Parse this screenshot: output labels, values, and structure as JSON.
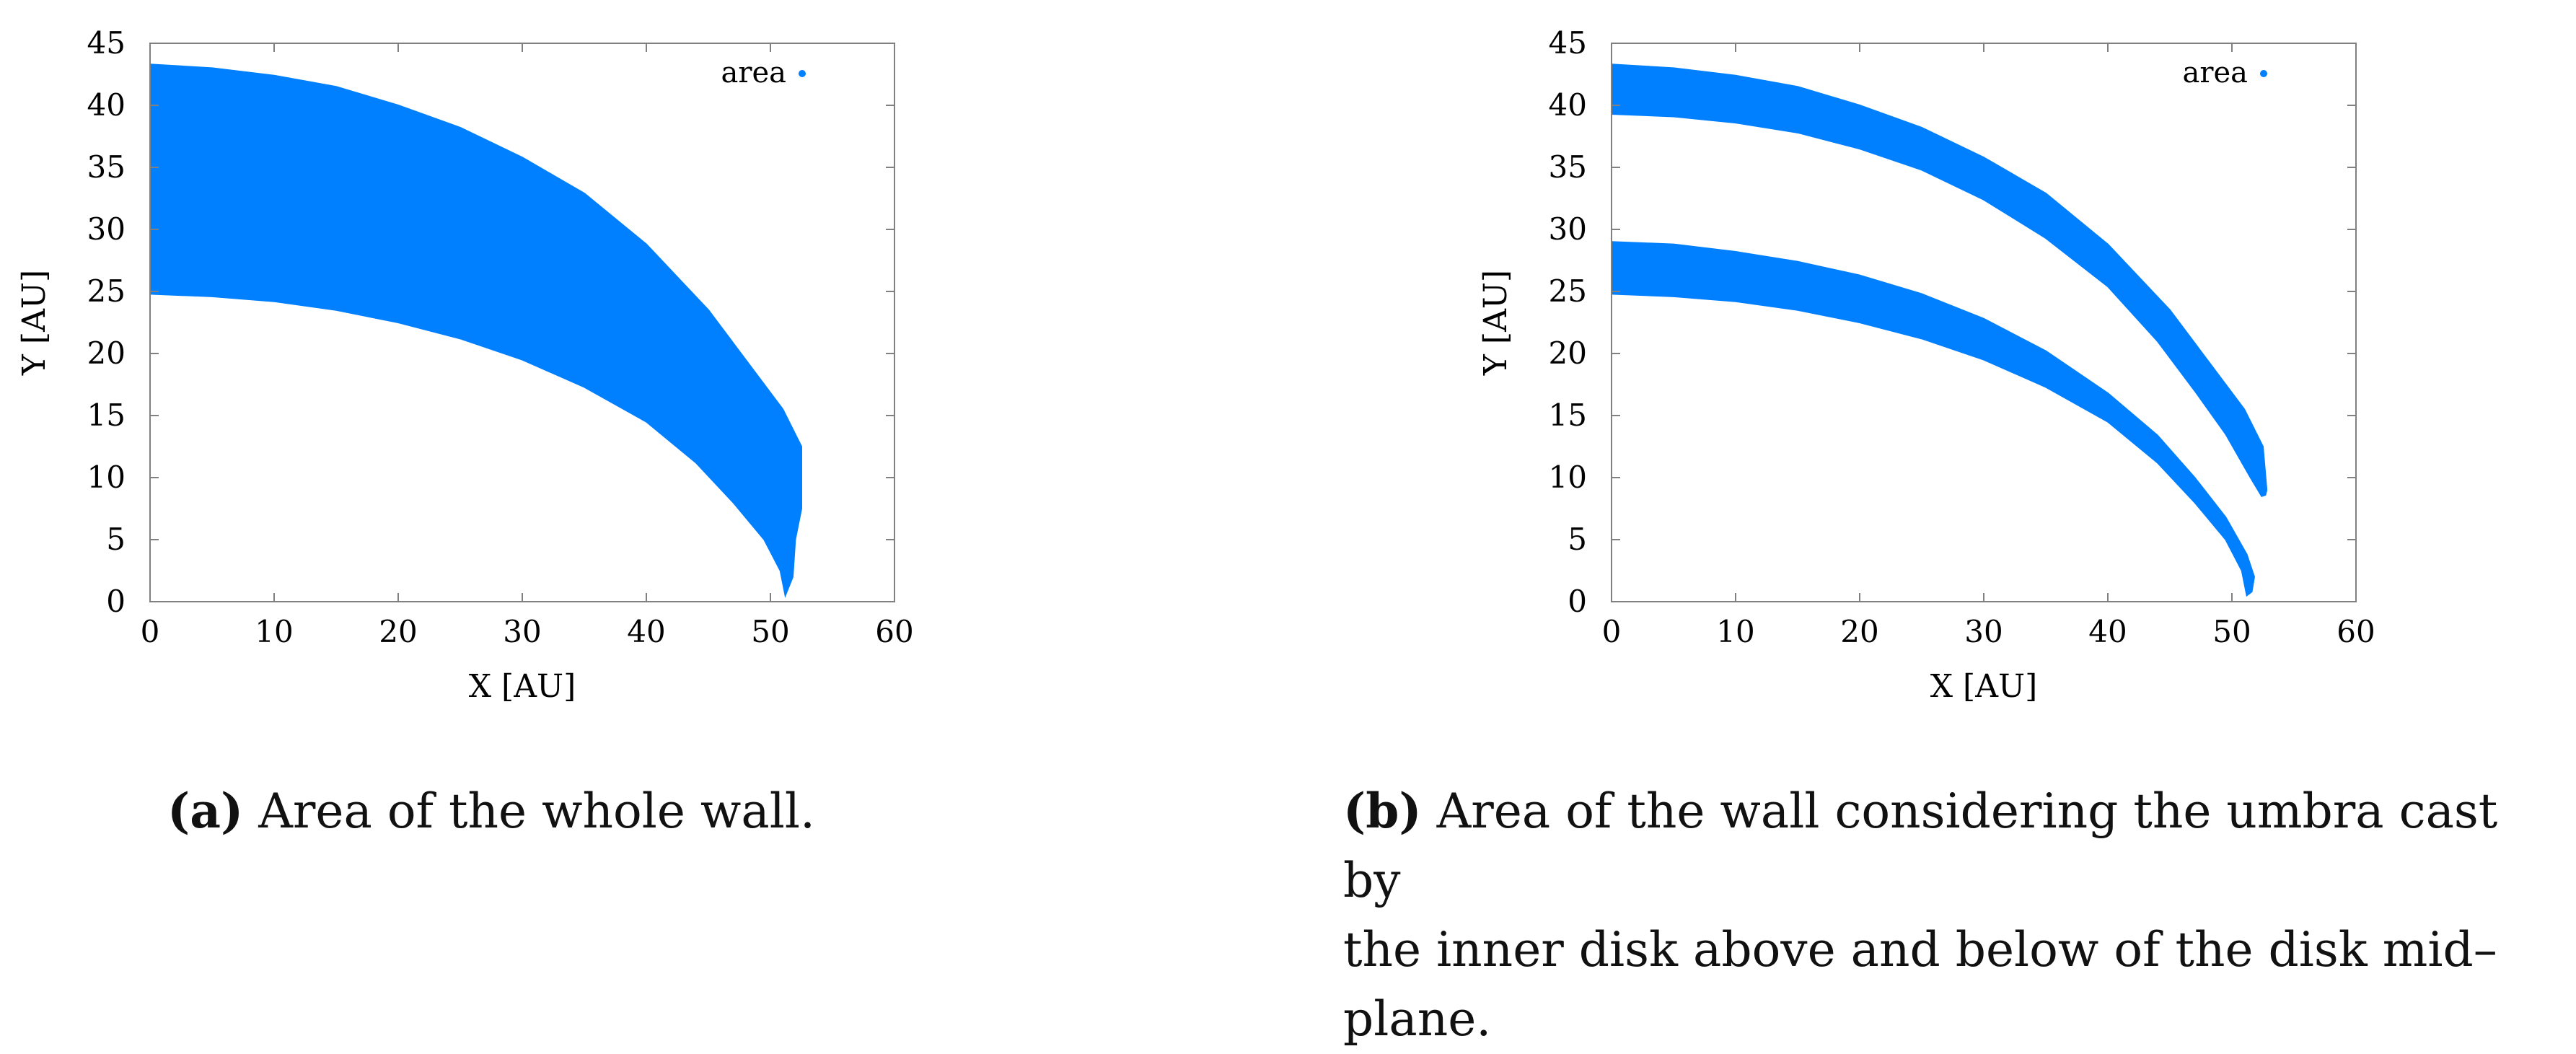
{
  "chart_data": [
    {
      "type": "scatter",
      "legend": "area",
      "legend_position": "top-right",
      "color": "#0080ff",
      "xlabel": "X [AU]",
      "ylabel": "Y [AU]",
      "xlim": [
        0,
        60
      ],
      "ylim": [
        0,
        45
      ],
      "xticks": [
        0,
        10,
        20,
        30,
        40,
        50,
        60
      ],
      "yticks": [
        0,
        5,
        10,
        15,
        20,
        25,
        30,
        35,
        40,
        45
      ],
      "x_tick_labels": [
        "0",
        "10",
        "20",
        "30",
        "40",
        "50",
        "60"
      ],
      "y_tick_labels": [
        "0",
        "5",
        "10",
        "15",
        "20",
        "25",
        "30",
        "35",
        "40",
        "45"
      ],
      "regions": [
        {
          "outer": [
            [
              0,
              43.3
            ],
            [
              5,
              43.0
            ],
            [
              10,
              42.4
            ],
            [
              15,
              41.5
            ],
            [
              20,
              40.0
            ],
            [
              25,
              38.2
            ],
            [
              30,
              35.8
            ],
            [
              35,
              32.9
            ],
            [
              40,
              28.8
            ],
            [
              45,
              23.5
            ],
            [
              48,
              19.5
            ],
            [
              51,
              15.5
            ],
            [
              52.5,
              12.5
            ],
            [
              52.5,
              7.5
            ]
          ],
          "inner": [
            [
              0,
              24.8
            ],
            [
              5,
              24.6
            ],
            [
              10,
              24.2
            ],
            [
              15,
              23.5
            ],
            [
              20,
              22.5
            ],
            [
              25,
              21.2
            ],
            [
              30,
              19.5
            ],
            [
              35,
              17.3
            ],
            [
              40,
              14.5
            ],
            [
              44,
              11.2
            ],
            [
              47,
              8.0
            ],
            [
              49.5,
              5.0
            ],
            [
              50.8,
              2.5
            ],
            [
              51.2,
              0.5
            ]
          ],
          "tip": [
            [
              52.0,
              5.0
            ],
            [
              51.8,
              2.0
            ]
          ]
        }
      ]
    },
    {
      "type": "scatter",
      "legend": "area",
      "legend_position": "top-right",
      "color": "#0080ff",
      "xlabel": "X [AU]",
      "ylabel": "Y [AU]",
      "xlim": [
        0,
        60
      ],
      "ylim": [
        0,
        45
      ],
      "xticks": [
        0,
        10,
        20,
        30,
        40,
        50,
        60
      ],
      "yticks": [
        0,
        5,
        10,
        15,
        20,
        25,
        30,
        35,
        40,
        45
      ],
      "x_tick_labels": [
        "0",
        "10",
        "20",
        "30",
        "40",
        "50",
        "60"
      ],
      "y_tick_labels": [
        "0",
        "5",
        "10",
        "15",
        "20",
        "25",
        "30",
        "35",
        "40",
        "45"
      ],
      "regions": [
        {
          "outer": [
            [
              0,
              43.3
            ],
            [
              5,
              43.0
            ],
            [
              10,
              42.4
            ],
            [
              15,
              41.5
            ],
            [
              20,
              40.0
            ],
            [
              25,
              38.2
            ],
            [
              30,
              35.8
            ],
            [
              35,
              32.9
            ],
            [
              40,
              28.8
            ],
            [
              45,
              23.5
            ],
            [
              48,
              19.5
            ],
            [
              51,
              15.5
            ],
            [
              52.5,
              12.5
            ],
            [
              52.8,
              9.0
            ]
          ],
          "inner": [
            [
              0,
              39.3
            ],
            [
              5,
              39.1
            ],
            [
              10,
              38.6
            ],
            [
              15,
              37.8
            ],
            [
              20,
              36.5
            ],
            [
              25,
              34.8
            ],
            [
              30,
              32.4
            ],
            [
              35,
              29.3
            ],
            [
              40,
              25.4
            ],
            [
              44,
              21.0
            ],
            [
              47,
              17.0
            ],
            [
              49.5,
              13.5
            ],
            [
              51.5,
              10.0
            ],
            [
              52.4,
              8.5
            ]
          ],
          "tip": [
            [
              52.7,
              8.6
            ]
          ]
        },
        {
          "outer": [
            [
              0,
              29.0
            ],
            [
              5,
              28.8
            ],
            [
              10,
              28.2
            ],
            [
              15,
              27.4
            ],
            [
              20,
              26.3
            ],
            [
              25,
              24.8
            ],
            [
              30,
              22.8
            ],
            [
              35,
              20.2
            ],
            [
              40,
              16.8
            ],
            [
              44,
              13.4
            ],
            [
              47,
              10.0
            ],
            [
              49.5,
              6.8
            ],
            [
              51.2,
              3.8
            ],
            [
              51.8,
              2.0
            ]
          ],
          "inner": [
            [
              0,
              24.8
            ],
            [
              5,
              24.6
            ],
            [
              10,
              24.2
            ],
            [
              15,
              23.5
            ],
            [
              20,
              22.5
            ],
            [
              25,
              21.2
            ],
            [
              30,
              19.5
            ],
            [
              35,
              17.3
            ],
            [
              40,
              14.5
            ],
            [
              44,
              11.2
            ],
            [
              47,
              8.0
            ],
            [
              49.5,
              5.0
            ],
            [
              50.8,
              2.5
            ],
            [
              51.2,
              0.5
            ]
          ],
          "tip": [
            [
              51.6,
              0.8
            ]
          ]
        }
      ]
    }
  ],
  "captions": {
    "a_tag": "(a)",
    "a_text": "Area of the whole wall.",
    "b_tag": "(b)",
    "b_line1": "Area of the wall considering the umbra cast by",
    "b_line2": "the inner disk above and below of the disk mid–",
    "b_line3": "plane."
  }
}
